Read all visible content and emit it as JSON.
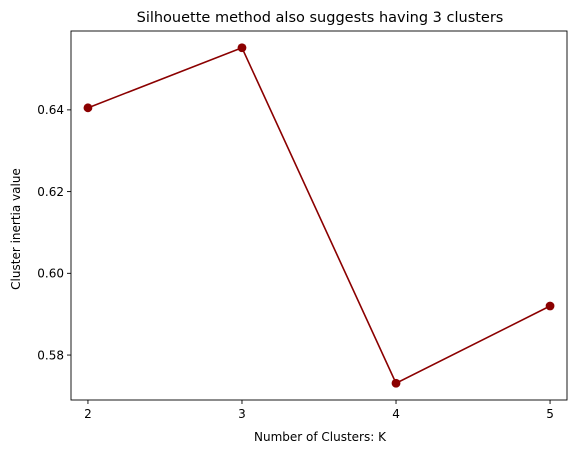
{
  "chart_data": {
    "type": "line",
    "title": "Silhouette method also suggests having 3 clusters",
    "xlabel": "Number of Clusters: K",
    "ylabel": "Cluster inertia value",
    "x": [
      2,
      3,
      4,
      5
    ],
    "series": [
      {
        "values": [
          0.6405,
          0.6552,
          0.5731,
          0.592
        ]
      }
    ],
    "xticks": [
      2,
      3,
      4,
      5
    ],
    "xtick_labels": [
      "2",
      "3",
      "4",
      "5"
    ],
    "yticks": [
      0.58,
      0.6,
      0.62,
      0.64
    ],
    "ytick_labels": [
      "0.58",
      "0.60",
      "0.62",
      "0.64"
    ],
    "xlim": [
      1.89,
      5.11
    ],
    "ylim": [
      0.569,
      0.6593
    ],
    "grid": false,
    "line_color": "#8b0000",
    "marker": "circle"
  }
}
